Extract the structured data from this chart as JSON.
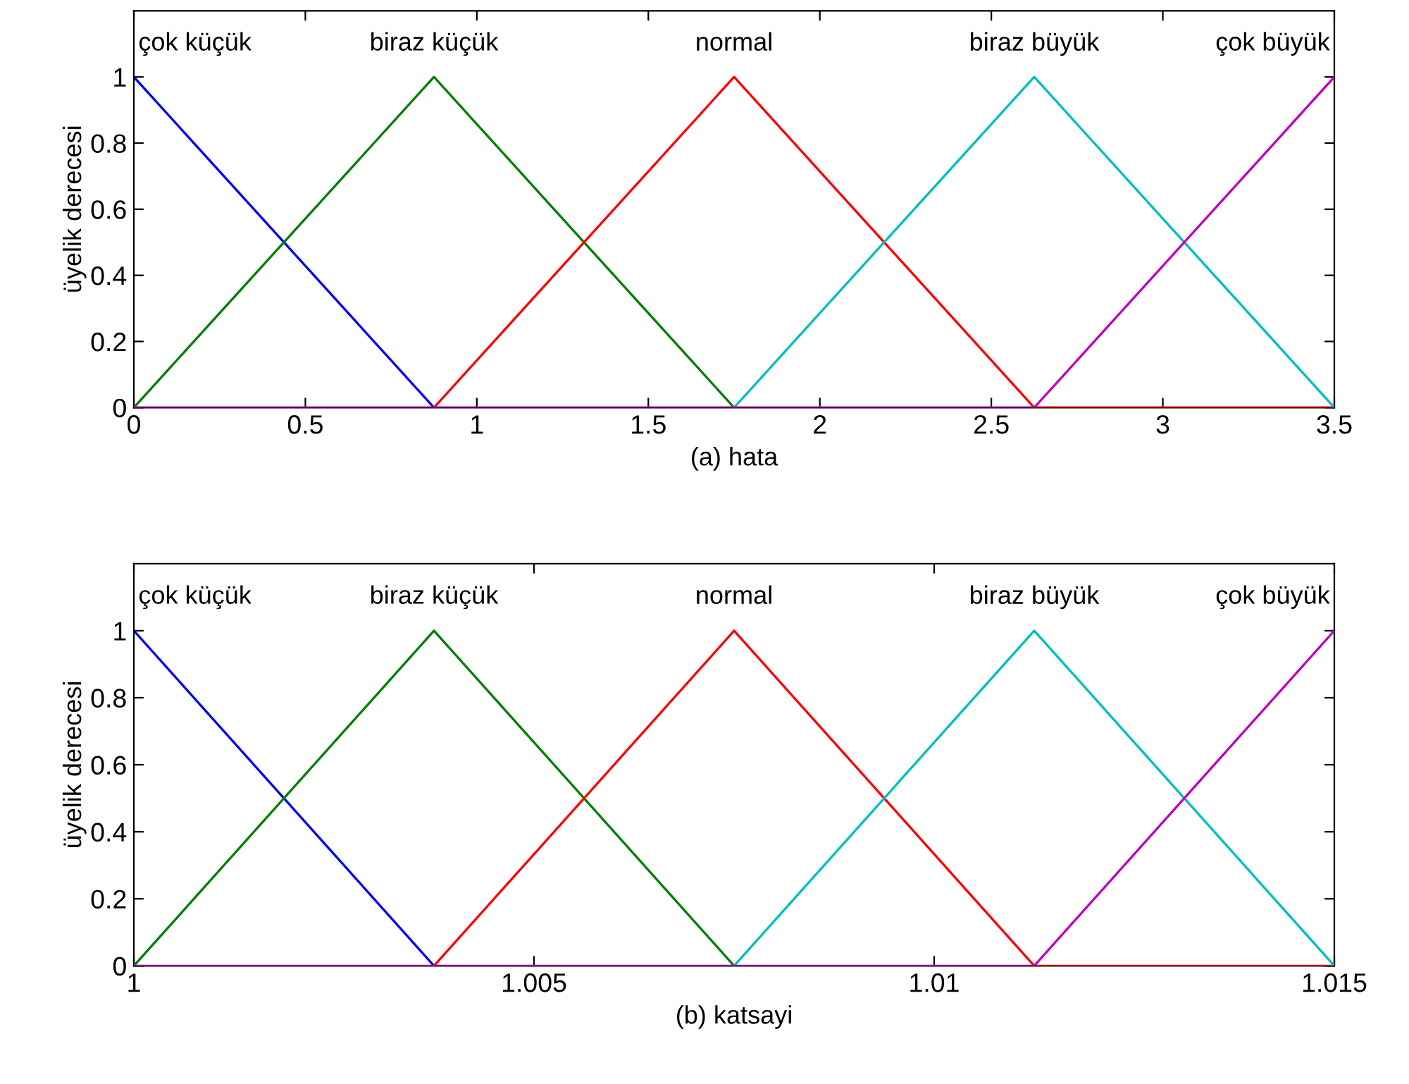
{
  "chart_data": [
    {
      "type": "line",
      "xlabel": "(a) hata",
      "ylabel": "üyelik derecesi",
      "x": [
        0,
        0.875,
        1.75,
        2.625,
        3.5
      ],
      "series": [
        {
          "name": "çok küçük",
          "color": "#0000ff",
          "values": [
            1,
            0,
            null,
            null,
            null
          ]
        },
        {
          "name": "biraz küçük",
          "color": "#008000",
          "values": [
            0,
            1,
            0,
            null,
            null
          ]
        },
        {
          "name": "normal",
          "color": "#ff0000",
          "values": [
            null,
            0,
            1,
            0,
            0
          ]
        },
        {
          "name": "biraz büyük",
          "color": "#00bfbf",
          "values": [
            null,
            null,
            0,
            1,
            0
          ]
        },
        {
          "name": "çok büyük",
          "color": "#bf00bf",
          "values": [
            0,
            0,
            0,
            0,
            1
          ]
        }
      ],
      "xlim": [
        0,
        3.5
      ],
      "xticks": [
        0,
        0.5,
        1,
        1.5,
        2,
        2.5,
        3,
        3.5
      ],
      "ylim": [
        0,
        1.2
      ],
      "yticks": [
        0,
        0.2,
        0.4,
        0.6,
        0.8,
        1
      ],
      "grid": false
    },
    {
      "type": "line",
      "xlabel": "(b) katsayi",
      "ylabel": "üyelik derecesi",
      "x": [
        1,
        1.00375,
        1.0075,
        1.01125,
        1.015
      ],
      "series": [
        {
          "name": "çok küçük",
          "color": "#0000ff",
          "values": [
            1,
            0,
            null,
            null,
            null
          ]
        },
        {
          "name": "biraz küçük",
          "color": "#008000",
          "values": [
            0,
            1,
            0,
            null,
            null
          ]
        },
        {
          "name": "normal",
          "color": "#ff0000",
          "values": [
            null,
            0,
            1,
            0,
            0
          ]
        },
        {
          "name": "biraz büyük",
          "color": "#00bfbf",
          "values": [
            null,
            null,
            0,
            1,
            0
          ]
        },
        {
          "name": "çok büyük",
          "color": "#bf00bf",
          "values": [
            0,
            0,
            0,
            0,
            1
          ]
        }
      ],
      "xlim": [
        1,
        1.015
      ],
      "xticks": [
        1,
        1.005,
        1.01,
        1.015
      ],
      "ylim": [
        0,
        1.2
      ],
      "yticks": [
        0,
        0.2,
        0.4,
        0.6,
        0.8,
        1
      ],
      "grid": false
    }
  ]
}
